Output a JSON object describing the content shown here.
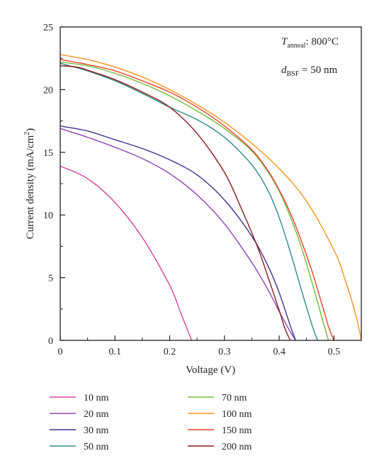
{
  "chart_data": {
    "type": "line",
    "xlabel": "Voltage (V)",
    "ylabel": "Current density (mA/cm",
    "ylabel_superscript": "2",
    "ylabel_suffix": ")",
    "xlim": [
      0,
      0.55
    ],
    "ylim": [
      0,
      25
    ],
    "x_ticks": [
      0,
      0.1,
      0.2,
      0.3,
      0.4,
      0.5
    ],
    "x_tick_labels": [
      "0",
      "0.1",
      "0.2",
      "0.3",
      "0.4",
      "0.5"
    ],
    "y_ticks": [
      0,
      5,
      10,
      15,
      20,
      25
    ],
    "y_tick_labels": [
      "0",
      "5",
      "10",
      "15",
      "20",
      "25"
    ],
    "grid": false,
    "legend_position": "bottom",
    "annotations": [
      {
        "symbol": "T",
        "subscript": "anneal",
        "text": ": 800°C"
      },
      {
        "symbol": "d",
        "subscript": "BSF",
        "text": " = 50 nm"
      }
    ],
    "series": [
      {
        "name": "10 nm",
        "color": "#d6439a",
        "x": [
          0,
          0.05,
          0.1,
          0.15,
          0.2,
          0.22,
          0.24
        ],
        "y": [
          13.9,
          12.9,
          11.0,
          8.2,
          4.4,
          2.2,
          0
        ]
      },
      {
        "name": "20 nm",
        "color": "#8e43b3",
        "x": [
          0,
          0.05,
          0.1,
          0.15,
          0.2,
          0.25,
          0.3,
          0.35,
          0.38,
          0.4,
          0.42,
          0.43
        ],
        "y": [
          16.9,
          16.2,
          15.4,
          14.5,
          13.3,
          11.6,
          9.3,
          6.2,
          4.0,
          2.3,
          0.7,
          0
        ]
      },
      {
        "name": "30 nm",
        "color": "#3c3391",
        "x": [
          0,
          0.05,
          0.1,
          0.15,
          0.2,
          0.25,
          0.3,
          0.35,
          0.38,
          0.4,
          0.42,
          0.43
        ],
        "y": [
          17.1,
          16.7,
          16.0,
          15.3,
          14.4,
          13.2,
          11.2,
          8.3,
          5.9,
          3.8,
          1.2,
          0
        ]
      },
      {
        "name": "50 nm",
        "color": "#2e8b8b",
        "x": [
          0,
          0.05,
          0.1,
          0.15,
          0.2,
          0.25,
          0.3,
          0.35,
          0.38,
          0.4,
          0.42,
          0.44,
          0.46,
          0.47
        ],
        "y": [
          22.1,
          21.5,
          20.7,
          19.7,
          18.6,
          17.6,
          16.2,
          14.0,
          11.9,
          9.8,
          7.1,
          4.1,
          1.2,
          0
        ]
      },
      {
        "name": "70 nm",
        "color": "#73bb3b",
        "x": [
          0,
          0.05,
          0.1,
          0.15,
          0.2,
          0.25,
          0.3,
          0.35,
          0.38,
          0.4,
          0.42,
          0.44,
          0.46,
          0.48,
          0.49
        ],
        "y": [
          22.2,
          21.9,
          21.3,
          20.5,
          19.5,
          18.3,
          16.9,
          15.1,
          13.4,
          11.9,
          9.9,
          7.5,
          4.6,
          1.5,
          0
        ]
      },
      {
        "name": "100 nm",
        "color": "#f7941d",
        "x": [
          0,
          0.05,
          0.1,
          0.15,
          0.2,
          0.25,
          0.3,
          0.35,
          0.4,
          0.45,
          0.5,
          0.52,
          0.54,
          0.55
        ],
        "y": [
          22.8,
          22.4,
          21.8,
          21.0,
          20.0,
          18.8,
          17.4,
          15.7,
          13.7,
          11.1,
          7.2,
          4.9,
          2.0,
          0
        ]
      },
      {
        "name": "150 nm",
        "color": "#e8412c",
        "x": [
          0,
          0.05,
          0.1,
          0.15,
          0.2,
          0.25,
          0.3,
          0.35,
          0.38,
          0.4,
          0.42,
          0.44,
          0.46,
          0.48,
          0.49,
          0.5
        ],
        "y": [
          22.4,
          22.0,
          21.5,
          20.7,
          19.8,
          18.6,
          17.1,
          15.2,
          13.5,
          12.0,
          10.2,
          8.0,
          5.5,
          2.6,
          1.1,
          0
        ]
      },
      {
        "name": "200 nm",
        "color": "#8b1a1a",
        "x": [
          0,
          0.03,
          0.06,
          0.1,
          0.15,
          0.2,
          0.25,
          0.3,
          0.33,
          0.36,
          0.38,
          0.4,
          0.41,
          0.42
        ],
        "y": [
          21.9,
          21.8,
          21.4,
          20.8,
          19.8,
          18.6,
          16.5,
          13.4,
          10.6,
          7.5,
          5.0,
          2.4,
          1.0,
          0
        ]
      }
    ]
  }
}
